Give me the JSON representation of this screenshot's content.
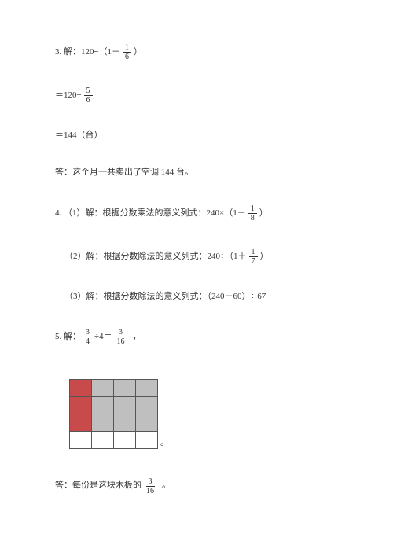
{
  "p3": {
    "line1_prefix": "3. 解：120÷（1－",
    "line1_frac": {
      "num": "1",
      "den": "6"
    },
    "line1_suffix": "）",
    "line2_prefix": "＝120÷",
    "line2_frac": {
      "num": "5",
      "den": "6"
    },
    "line3": "＝144（台）",
    "answer": "答：这个月一共卖出了空调 144 台。"
  },
  "p4": {
    "s1_prefix": "4. （1）解：根据分数乘法的意义列式：240×（1－",
    "s1_frac": {
      "num": "1",
      "den": "8"
    },
    "s1_suffix": "）",
    "s2_prefix": "（2）解：根据分数除法的意义列式：240÷（1＋",
    "s2_frac": {
      "num": "1",
      "den": "7"
    },
    "s2_suffix": "）",
    "s3": "（3）解：根据分数除法的意义列式：（240－60）÷ 67"
  },
  "p5": {
    "prefix": "5. 解：",
    "frac1": {
      "num": "3",
      "den": "4"
    },
    "mid": "÷4＝",
    "frac2": {
      "num": "3",
      "den": "16"
    },
    "comma": "，",
    "grid": {
      "cols": 4,
      "rows": [
        [
          "red",
          "gray",
          "gray",
          "gray"
        ],
        [
          "red",
          "gray",
          "gray",
          "gray"
        ],
        [
          "red",
          "gray",
          "gray",
          "gray"
        ],
        [
          "white",
          "white",
          "white",
          "white"
        ]
      ],
      "cell_border": "#555555",
      "red": "#c94a4a",
      "gray": "#bfbfbf",
      "white": "#ffffff"
    },
    "period": "。",
    "ans_prefix": "答：每份是这块木板的",
    "ans_frac": {
      "num": "3",
      "den": "16"
    },
    "ans_suffix": "。"
  }
}
